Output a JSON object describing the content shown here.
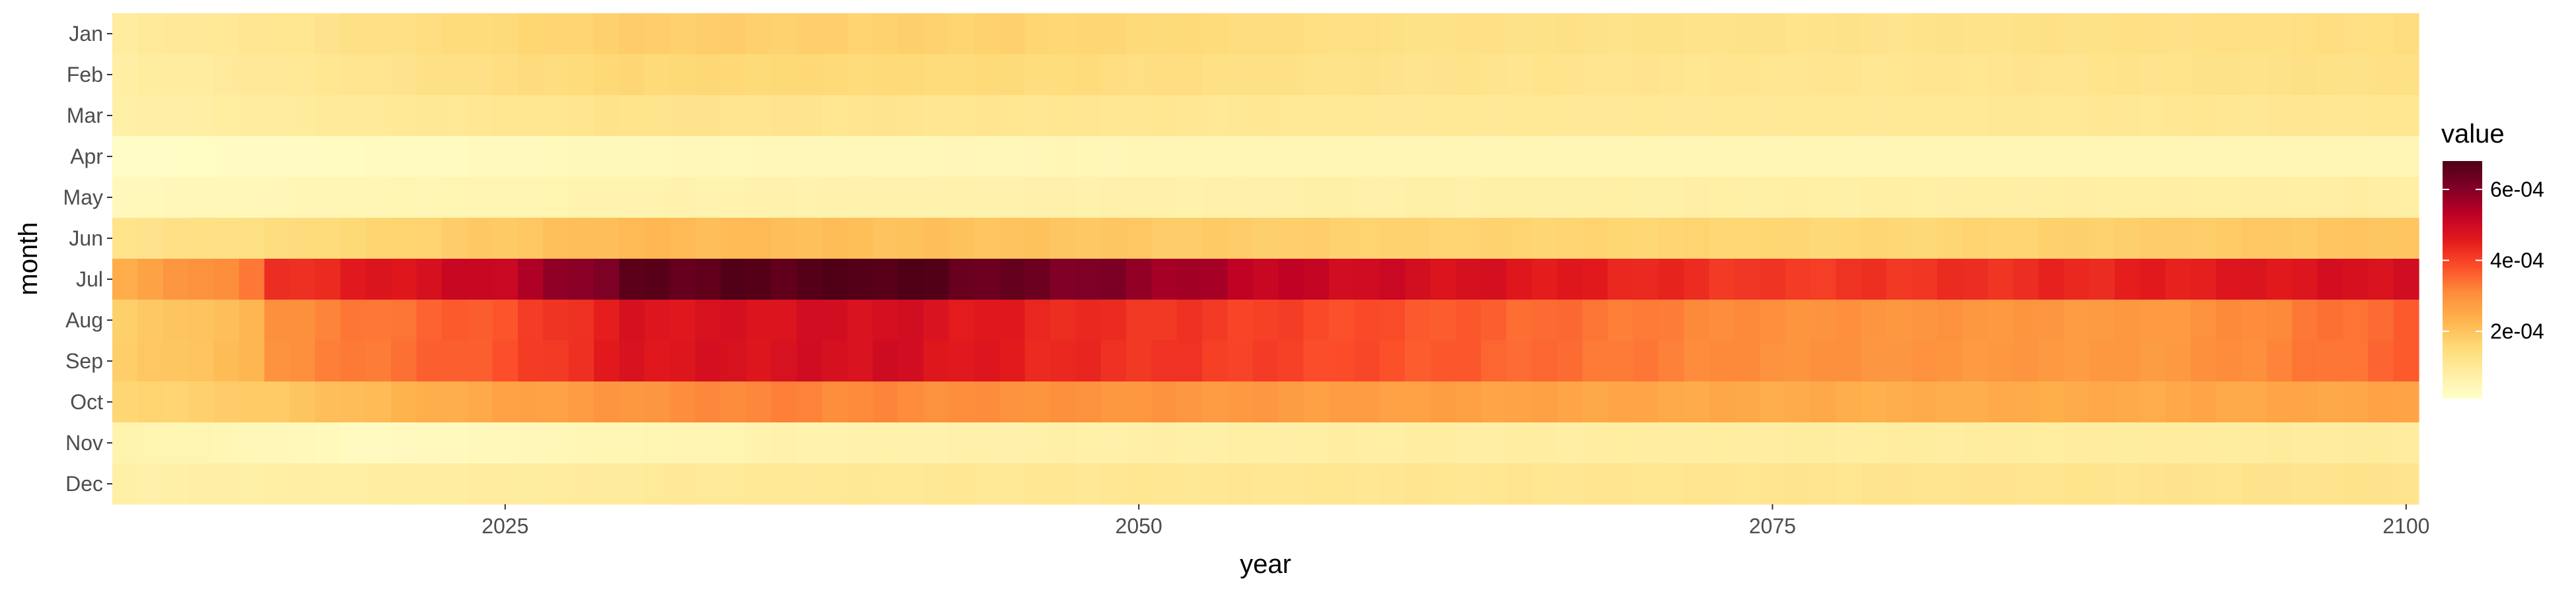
{
  "chart_data": {
    "type": "heatmap",
    "title": "",
    "xlabel": "year",
    "ylabel": "month",
    "x_range": [
      2010,
      2100
    ],
    "x_ticks": [
      2025,
      2050,
      2075,
      2100
    ],
    "x_tick_labels": [
      "2025",
      "2050",
      "2075",
      "2100"
    ],
    "months": [
      "Jan",
      "Feb",
      "Mar",
      "Apr",
      "May",
      "Jun",
      "Jul",
      "Aug",
      "Sep",
      "Oct",
      "Nov",
      "Dec"
    ],
    "value_estimation": "piecewise-linear anchors per month: [year, value]; interpolate for every year 2010-2100",
    "value_anchors": {
      "Jan": [
        [
          2010,
          9e-05
        ],
        [
          2016,
          0.00011
        ],
        [
          2030,
          0.00018
        ],
        [
          2045,
          0.00017
        ],
        [
          2060,
          0.00013
        ],
        [
          2080,
          0.00012
        ],
        [
          2100,
          0.00014
        ]
      ],
      "Feb": [
        [
          2010,
          8e-05
        ],
        [
          2016,
          0.0001
        ],
        [
          2030,
          0.00016
        ],
        [
          2045,
          0.00015
        ],
        [
          2060,
          0.00012
        ],
        [
          2080,
          0.00011
        ],
        [
          2100,
          0.00013
        ]
      ],
      "Mar": [
        [
          2010,
          7e-05
        ],
        [
          2016,
          9e-05
        ],
        [
          2030,
          0.00012
        ],
        [
          2045,
          0.00011
        ],
        [
          2060,
          0.0001
        ],
        [
          2080,
          0.0001
        ],
        [
          2100,
          0.00011
        ]
      ],
      "Apr": [
        [
          2010,
          2e-05
        ],
        [
          2030,
          4e-05
        ],
        [
          2060,
          5e-05
        ],
        [
          2100,
          5e-05
        ]
      ],
      "May": [
        [
          2010,
          4e-05
        ],
        [
          2030,
          6e-05
        ],
        [
          2060,
          7e-05
        ],
        [
          2100,
          8e-05
        ]
      ],
      "Jun": [
        [
          2010,
          0.00012
        ],
        [
          2016,
          0.00014
        ],
        [
          2030,
          0.00022
        ],
        [
          2045,
          0.0002
        ],
        [
          2060,
          0.00017
        ],
        [
          2080,
          0.00016
        ],
        [
          2100,
          0.0002
        ]
      ],
      "Jul": [
        [
          2010,
          0.00025
        ],
        [
          2015,
          0.00033
        ],
        [
          2016,
          0.00042
        ],
        [
          2025,
          0.00052
        ],
        [
          2030,
          0.00065
        ],
        [
          2040,
          0.00068
        ],
        [
          2048,
          0.00061
        ],
        [
          2055,
          0.00052
        ],
        [
          2065,
          0.00047
        ],
        [
          2075,
          0.00041
        ],
        [
          2085,
          0.00043
        ],
        [
          2095,
          0.00047
        ],
        [
          2100,
          0.00049
        ]
      ],
      "Aug": [
        [
          2010,
          0.00018
        ],
        [
          2015,
          0.00022
        ],
        [
          2016,
          0.0003
        ],
        [
          2025,
          0.00038
        ],
        [
          2030,
          0.00047
        ],
        [
          2040,
          0.00049
        ],
        [
          2048,
          0.00043
        ],
        [
          2060,
          0.00038
        ],
        [
          2075,
          0.0003
        ],
        [
          2090,
          0.00028
        ],
        [
          2100,
          0.00036
        ]
      ],
      "Sep": [
        [
          2010,
          0.00018
        ],
        [
          2015,
          0.00022
        ],
        [
          2016,
          0.0003
        ],
        [
          2025,
          0.00038
        ],
        [
          2030,
          0.00047
        ],
        [
          2040,
          0.00049
        ],
        [
          2048,
          0.00043
        ],
        [
          2060,
          0.00038
        ],
        [
          2075,
          0.0003
        ],
        [
          2090,
          0.00028
        ],
        [
          2100,
          0.00036
        ]
      ],
      "Oct": [
        [
          2010,
          0.00016
        ],
        [
          2016,
          0.00019
        ],
        [
          2025,
          0.00026
        ],
        [
          2035,
          0.00032
        ],
        [
          2045,
          0.0003
        ],
        [
          2060,
          0.00027
        ],
        [
          2080,
          0.00024
        ],
        [
          2100,
          0.00026
        ]
      ],
      "Nov": [
        [
          2010,
          6e-05
        ],
        [
          2020,
          3e-05
        ],
        [
          2035,
          6e-05
        ],
        [
          2060,
          8e-05
        ],
        [
          2100,
          9e-05
        ]
      ],
      "Dec": [
        [
          2010,
          7e-05
        ],
        [
          2020,
          8e-05
        ],
        [
          2035,
          0.0001
        ],
        [
          2060,
          0.00011
        ],
        [
          2100,
          0.00012
        ]
      ]
    },
    "legend": {
      "title": "value",
      "placement": "right",
      "min": 1e-05,
      "max": 0.00068,
      "ticks": [
        0.0002,
        0.0004,
        0.0006
      ],
      "tick_labels": [
        "2e-04",
        "4e-04",
        "6e-04"
      ]
    },
    "colors": [
      "#ffffcc",
      "#ffeda0",
      "#fed976",
      "#feb24c",
      "#fd8d3c",
      "#fc4e2a",
      "#e31a1c",
      "#bd0026",
      "#800026",
      "#4f0016"
    ],
    "grid": false
  }
}
